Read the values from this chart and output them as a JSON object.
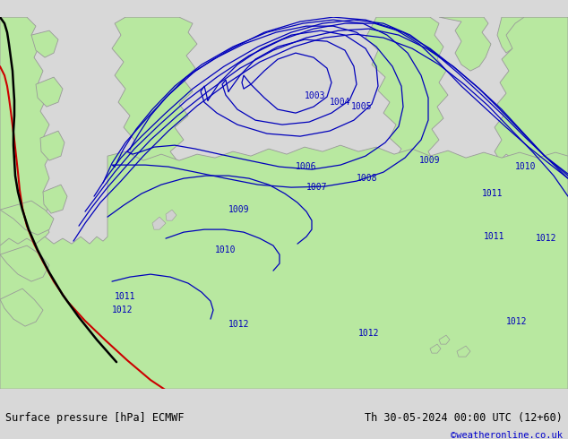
{
  "title_left": "Surface pressure [hPa] ECMWF",
  "title_right": "Th 30-05-2024 00:00 UTC (12+60)",
  "copyright": "©weatheronline.co.uk",
  "bg_color": "#d8d8d8",
  "land_color": "#b8e8a0",
  "coast_color": "#999999",
  "isobar_color": "#0000bb",
  "front_black": "#000000",
  "front_red": "#cc0000",
  "text_color": "#000000",
  "copy_color": "#0000cc",
  "bar_color": "#c0c0c0",
  "figsize": [
    6.34,
    4.9
  ],
  "dpi": 100
}
